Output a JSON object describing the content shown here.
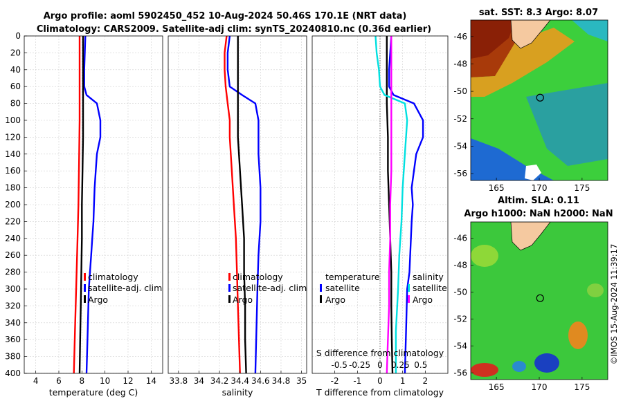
{
  "header": {
    "title_line1": "Argo profile: aoml 5902450_452 10-Aug-2024 50.46S 170.1E (NRT data)",
    "title_line2": "Climatology: CARS2009. Satellite-adj clim: synTS_20240810.nc (0.36d earlier)"
  },
  "colors": {
    "climatology": "#ff0000",
    "satellite": "#0000ff",
    "argo": "#000000",
    "sat_salt": "#00e0e0",
    "argo_salt_diff": "#ff00ff"
  },
  "chart_data": [
    {
      "type": "line",
      "name": "temperature",
      "xlabel": "temperature (deg C)",
      "xlim": [
        3,
        15
      ],
      "xticks": [
        4,
        6,
        8,
        10,
        12,
        14
      ],
      "ylim": [
        400,
        0
      ],
      "yticks": [
        0,
        20,
        40,
        60,
        80,
        100,
        120,
        140,
        160,
        180,
        200,
        220,
        240,
        260,
        280,
        300,
        320,
        340,
        360,
        380,
        400
      ],
      "grid": true,
      "legend": [
        "climatology",
        "satellite-adj. clim",
        "Argo"
      ],
      "series": [
        {
          "name": "climatology",
          "color": "#ff0000",
          "points": [
            [
              7.8,
              0
            ],
            [
              7.8,
              20
            ],
            [
              7.8,
              60
            ],
            [
              7.8,
              100
            ],
            [
              7.75,
              150
            ],
            [
              7.7,
              200
            ],
            [
              7.6,
              250
            ],
            [
              7.5,
              300
            ],
            [
              7.4,
              350
            ],
            [
              7.3,
              400
            ]
          ]
        },
        {
          "name": "satellite-adj. clim",
          "color": "#0000ff",
          "points": [
            [
              8.3,
              0
            ],
            [
              8.25,
              20
            ],
            [
              8.2,
              40
            ],
            [
              8.2,
              60
            ],
            [
              8.4,
              70
            ],
            [
              9.3,
              80
            ],
            [
              9.6,
              100
            ],
            [
              9.6,
              120
            ],
            [
              9.3,
              140
            ],
            [
              9.2,
              160
            ],
            [
              9.1,
              180
            ],
            [
              9.05,
              200
            ],
            [
              9.0,
              220
            ],
            [
              8.9,
              240
            ],
            [
              8.8,
              260
            ],
            [
              8.7,
              280
            ],
            [
              8.6,
              300
            ],
            [
              8.5,
              350
            ],
            [
              8.4,
              400
            ]
          ]
        },
        {
          "name": "Argo",
          "color": "#000000",
          "points": [
            [
              8.1,
              0
            ],
            [
              8.1,
              40
            ],
            [
              8.1,
              80
            ],
            [
              8.1,
              120
            ],
            [
              8.05,
              160
            ],
            [
              8.0,
              200
            ],
            [
              8.0,
              240
            ],
            [
              7.95,
              280
            ],
            [
              7.9,
              320
            ],
            [
              7.85,
              360
            ],
            [
              7.8,
              400
            ]
          ]
        }
      ]
    },
    {
      "type": "line",
      "name": "salinity",
      "xlabel": "salinity",
      "xlim": [
        33.7,
        35.05
      ],
      "xticks": [
        33.8,
        34,
        34.2,
        34.4,
        34.6,
        34.8,
        35
      ],
      "xtick_labels": [
        "33.8",
        "34",
        "34.2",
        "34.4",
        "34.6",
        "34.8",
        "35"
      ],
      "ylim": [
        400,
        0
      ],
      "grid": true,
      "legend": [
        "climatology",
        "satellite-adj. clim",
        "Argo"
      ],
      "series": [
        {
          "name": "climatology",
          "color": "#ff0000",
          "points": [
            [
              34.27,
              0
            ],
            [
              34.25,
              20
            ],
            [
              34.25,
              40
            ],
            [
              34.26,
              60
            ],
            [
              34.28,
              80
            ],
            [
              34.3,
              100
            ],
            [
              34.3,
              120
            ],
            [
              34.32,
              160
            ],
            [
              34.34,
              200
            ],
            [
              34.36,
              240
            ],
            [
              34.37,
              280
            ],
            [
              34.38,
              320
            ],
            [
              34.39,
              360
            ],
            [
              34.4,
              400
            ]
          ]
        },
        {
          "name": "satellite-adj. clim",
          "color": "#0000ff",
          "points": [
            [
              34.3,
              0
            ],
            [
              34.28,
              20
            ],
            [
              34.28,
              40
            ],
            [
              34.3,
              60
            ],
            [
              34.42,
              70
            ],
            [
              34.55,
              80
            ],
            [
              34.58,
              100
            ],
            [
              34.58,
              140
            ],
            [
              34.6,
              180
            ],
            [
              34.6,
              220
            ],
            [
              34.58,
              260
            ],
            [
              34.57,
              300
            ],
            [
              34.56,
              350
            ],
            [
              34.55,
              400
            ]
          ]
        },
        {
          "name": "Argo",
          "color": "#000000",
          "points": [
            [
              34.38,
              0
            ],
            [
              34.38,
              40
            ],
            [
              34.38,
              80
            ],
            [
              34.38,
              120
            ],
            [
              34.4,
              160
            ],
            [
              34.42,
              200
            ],
            [
              34.44,
              240
            ],
            [
              34.44,
              280
            ],
            [
              34.45,
              320
            ],
            [
              34.45,
              360
            ],
            [
              34.46,
              400
            ]
          ]
        }
      ]
    },
    {
      "type": "line",
      "name": "difference",
      "xlabel": "T difference from climatology",
      "xlabel_top": "S difference from climatology",
      "xlim": [
        -3,
        3
      ],
      "xticks": [
        -2,
        -1,
        0,
        1,
        2
      ],
      "top_ticks": [
        "-0.5",
        "-0.25",
        "0",
        "0.25",
        "0.5"
      ],
      "ylim": [
        400,
        0
      ],
      "grid": true,
      "legend_temperature": "temperature",
      "legend_salinity": "salinity",
      "legend_items": [
        "satellite",
        "Argo"
      ],
      "series": [
        {
          "name": "T satellite",
          "color": "#0000ff",
          "points": [
            [
              0.5,
              0
            ],
            [
              0.45,
              20
            ],
            [
              0.4,
              40
            ],
            [
              0.4,
              60
            ],
            [
              0.6,
              70
            ],
            [
              1.5,
              80
            ],
            [
              1.9,
              100
            ],
            [
              1.9,
              120
            ],
            [
              1.6,
              140
            ],
            [
              1.5,
              160
            ],
            [
              1.4,
              180
            ],
            [
              1.45,
              200
            ],
            [
              1.4,
              220
            ],
            [
              1.35,
              250
            ],
            [
              1.3,
              280
            ],
            [
              1.2,
              300
            ],
            [
              1.15,
              350
            ],
            [
              1.1,
              400
            ]
          ]
        },
        {
          "name": "T Argo",
          "color": "#000000",
          "points": [
            [
              0.3,
              0
            ],
            [
              0.3,
              40
            ],
            [
              0.3,
              80
            ],
            [
              0.35,
              120
            ],
            [
              0.35,
              160
            ],
            [
              0.4,
              200
            ],
            [
              0.45,
              240
            ],
            [
              0.5,
              280
            ],
            [
              0.5,
              320
            ],
            [
              0.52,
              360
            ],
            [
              0.55,
              400
            ]
          ]
        },
        {
          "name": "S satellite",
          "color": "#00e0e0",
          "points": [
            [
              -0.2,
              0
            ],
            [
              -0.15,
              20
            ],
            [
              -0.05,
              40
            ],
            [
              0.0,
              60
            ],
            [
              0.2,
              70
            ],
            [
              1.1,
              80
            ],
            [
              1.2,
              100
            ],
            [
              1.1,
              140
            ],
            [
              1.0,
              180
            ],
            [
              0.95,
              220
            ],
            [
              0.85,
              260
            ],
            [
              0.8,
              300
            ],
            [
              0.7,
              350
            ],
            [
              0.7,
              400
            ]
          ]
        },
        {
          "name": "S Argo",
          "color": "#ff00ff",
          "points": [
            [
              0.5,
              0
            ],
            [
              0.5,
              40
            ],
            [
              0.5,
              80
            ],
            [
              0.5,
              120
            ],
            [
              0.5,
              160
            ],
            [
              0.45,
              200
            ],
            [
              0.45,
              240
            ],
            [
              0.4,
              280
            ],
            [
              0.4,
              320
            ],
            [
              0.35,
              360
            ],
            [
              0.3,
              400
            ]
          ]
        }
      ]
    },
    {
      "type": "heatmap",
      "name": "sst_map",
      "title": "sat. SST: 8.3 Argo: 8.07",
      "xticks": [
        165,
        170,
        175
      ],
      "yticks": [
        -46,
        -48,
        -50,
        -52,
        -54,
        -56
      ],
      "xlim": [
        162,
        178
      ],
      "ylim": [
        -56.5,
        -44.8
      ],
      "argo_position": [
        170.1,
        -50.46
      ]
    },
    {
      "type": "heatmap",
      "name": "sla_map",
      "title_line1": "Altim. SLA: 0.11",
      "title_line2": "Argo h1000: NaN h2000: NaN",
      "xticks": [
        165,
        170,
        175
      ],
      "yticks": [
        -46,
        -48,
        -50,
        -52,
        -54,
        -56
      ],
      "xlim": [
        162,
        178
      ],
      "ylim": [
        -56.5,
        -44.8
      ],
      "argo_position": [
        170.1,
        -50.46
      ]
    }
  ],
  "watermark": "©IMOS 15-Aug-2024 11:39:17"
}
